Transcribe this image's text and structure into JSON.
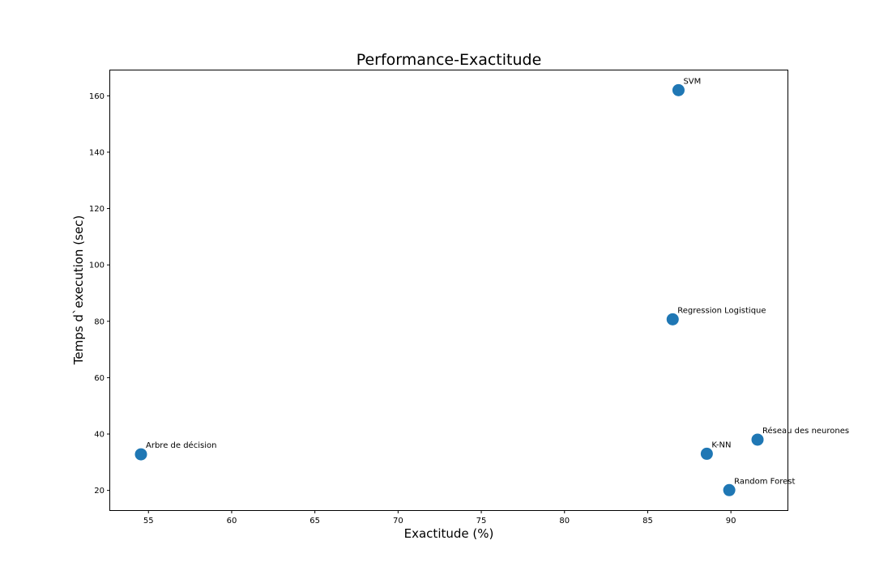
{
  "chart_data": {
    "type": "scatter",
    "title": "Performance-Exactitude",
    "xlabel": "Exactitude (%)",
    "ylabel": "Temps d`execution (sec)",
    "xlim": [
      52.7,
      93.4
    ],
    "ylim": [
      13.0,
      169.0
    ],
    "xticks": [
      55,
      60,
      65,
      70,
      75,
      80,
      85,
      90
    ],
    "yticks": [
      20,
      40,
      60,
      80,
      100,
      120,
      140,
      160
    ],
    "grid": false,
    "marker_color": "#1f77b4",
    "points": [
      {
        "label": "SVM",
        "x": 86.85,
        "y": 162.0
      },
      {
        "label": "Regression Logistique",
        "x": 86.5,
        "y": 80.7
      },
      {
        "label": "Réseau des neurones",
        "x": 91.6,
        "y": 38.0
      },
      {
        "label": "Arbre de décision",
        "x": 54.55,
        "y": 32.8
      },
      {
        "label": "K-NN",
        "x": 88.55,
        "y": 33.0
      },
      {
        "label": "Random Forest",
        "x": 89.9,
        "y": 20.1
      }
    ]
  }
}
